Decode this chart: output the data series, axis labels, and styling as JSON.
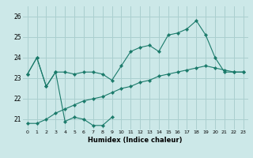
{
  "background_color": "#cce8e8",
  "grid_color": "#aacfcf",
  "line_color": "#1a7a6a",
  "marker_color": "#1a7a6a",
  "xlabel": "Humidex (Indice chaleur)",
  "ylim": [
    20.5,
    26.5
  ],
  "xlim": [
    -0.5,
    23.5
  ],
  "yticks": [
    21,
    22,
    23,
    24,
    25,
    26
  ],
  "xticks": [
    0,
    1,
    2,
    3,
    4,
    5,
    6,
    7,
    8,
    9,
    10,
    11,
    12,
    13,
    14,
    15,
    16,
    17,
    18,
    19,
    20,
    21,
    22,
    23
  ],
  "series": [
    {
      "x": [
        0,
        1,
        2,
        3,
        4,
        5,
        6,
        7,
        8,
        9,
        10,
        11,
        12,
        13,
        14,
        15,
        16,
        17,
        18,
        19,
        20,
        21,
        22,
        23
      ],
      "y": [
        23.2,
        24.0,
        22.6,
        23.3,
        23.3,
        23.2,
        23.3,
        23.3,
        23.2,
        22.9,
        23.6,
        24.3,
        24.5,
        24.6,
        24.3,
        25.1,
        25.2,
        25.4,
        25.8,
        25.1,
        24.0,
        23.3,
        23.3,
        23.3
      ]
    },
    {
      "x": [
        0,
        1,
        2,
        3,
        4,
        5,
        6,
        7,
        8,
        9
      ],
      "y": [
        23.2,
        24.0,
        22.6,
        23.3,
        20.9,
        21.1,
        21.0,
        20.7,
        20.7,
        21.1
      ]
    },
    {
      "x": [
        0,
        1,
        2,
        3,
        4,
        5,
        6,
        7,
        8,
        9,
        10,
        11,
        12,
        13,
        14,
        15,
        16,
        17,
        18,
        19,
        20,
        21,
        22,
        23
      ],
      "y": [
        20.8,
        20.8,
        21.0,
        21.3,
        21.5,
        21.7,
        21.9,
        22.0,
        22.1,
        22.3,
        22.5,
        22.6,
        22.8,
        22.9,
        23.1,
        23.2,
        23.3,
        23.4,
        23.5,
        23.6,
        23.5,
        23.4,
        23.3,
        23.3
      ]
    }
  ]
}
